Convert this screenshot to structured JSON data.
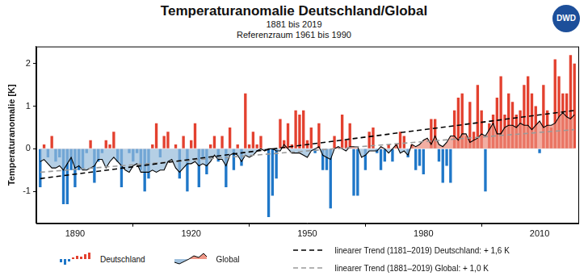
{
  "chart_data": {
    "type": "bar",
    "title": "Temperaturanomalie Deutschland/Global",
    "subtitle": [
      "1881 bis 2019",
      "Referenzraum 1961 bis 1990"
    ],
    "logo": "DWD",
    "y_label": "Temperaturanomalie [K]",
    "x": [
      1881,
      1882,
      1883,
      1884,
      1885,
      1886,
      1887,
      1888,
      1889,
      1890,
      1891,
      1892,
      1893,
      1894,
      1895,
      1896,
      1897,
      1898,
      1899,
      1900,
      1901,
      1902,
      1903,
      1904,
      1905,
      1906,
      1907,
      1908,
      1909,
      1910,
      1911,
      1912,
      1913,
      1914,
      1915,
      1916,
      1917,
      1918,
      1919,
      1920,
      1921,
      1922,
      1923,
      1924,
      1925,
      1926,
      1927,
      1928,
      1929,
      1930,
      1931,
      1932,
      1933,
      1934,
      1935,
      1936,
      1937,
      1938,
      1939,
      1940,
      1941,
      1942,
      1943,
      1944,
      1945,
      1946,
      1947,
      1948,
      1949,
      1950,
      1951,
      1952,
      1953,
      1954,
      1955,
      1956,
      1957,
      1958,
      1959,
      1960,
      1961,
      1962,
      1963,
      1964,
      1965,
      1966,
      1967,
      1968,
      1969,
      1970,
      1971,
      1972,
      1973,
      1974,
      1975,
      1976,
      1977,
      1978,
      1979,
      1980,
      1981,
      1982,
      1983,
      1984,
      1985,
      1986,
      1987,
      1988,
      1989,
      1990,
      1991,
      1992,
      1993,
      1994,
      1995,
      1996,
      1997,
      1998,
      1999,
      2000,
      2001,
      2002,
      2003,
      2004,
      2005,
      2006,
      2007,
      2008,
      2009,
      2010,
      2011,
      2012,
      2013,
      2014,
      2015,
      2016,
      2017,
      2018,
      2019
    ],
    "series": [
      {
        "name": "Deutschland",
        "type": "bar",
        "values": [
          -0.9,
          0.1,
          -0.2,
          0.3,
          -0.3,
          -0.2,
          -1.3,
          -1.3,
          -0.5,
          -0.9,
          -0.5,
          -0.5,
          -0.1,
          0.2,
          -0.8,
          -0.3,
          -0.1,
          0.2,
          0.1,
          0.4,
          -0.3,
          -0.9,
          0.0,
          -0.1,
          -0.3,
          -0.1,
          -0.5,
          -1.0,
          -0.7,
          0.1,
          0.6,
          -0.2,
          0.3,
          0.4,
          0.0,
          0.1,
          -0.7,
          0.3,
          -1.0,
          0.2,
          0.6,
          -0.9,
          -0.2,
          -0.6,
          0.1,
          0.3,
          -0.3,
          0.3,
          -0.9,
          0.5,
          -0.5,
          0.1,
          -0.4,
          1.3,
          0.1,
          0.4,
          0.1,
          0.3,
          0.0,
          -1.6,
          -1.1,
          -0.7,
          0.7,
          0.2,
          0.6,
          0.1,
          0.9,
          0.8,
          0.9,
          0.2,
          0.5,
          -0.1,
          0.6,
          -0.5,
          -0.5,
          -1.4,
          0.3,
          0.0,
          0.8,
          0.2,
          0.6,
          -1.1,
          -1.1,
          0.0,
          -0.5,
          0.4,
          0.5,
          -0.1,
          -0.5,
          -0.3,
          0.1,
          -0.3,
          0.1,
          0.4,
          0.3,
          -0.2,
          0.1,
          -0.5,
          -0.4,
          -0.6,
          0.0,
          0.7,
          0.7,
          -0.3,
          -0.8,
          -0.4,
          -0.8,
          0.9,
          1.2,
          1.3,
          0.3,
          1.1,
          0.4,
          1.5,
          0.9,
          -1.0,
          0.6,
          0.8,
          1.2,
          1.7,
          0.8,
          1.3,
          1.1,
          0.8,
          0.9,
          1.5,
          1.7,
          1.3,
          1.0,
          -0.1,
          1.5,
          0.9,
          0.5,
          2.1,
          1.7,
          1.3,
          1.3,
          2.2,
          2.0
        ],
        "colors": [
          "#1f77c8",
          "#e3412f",
          "#1f77c8",
          "#e3412f",
          "#1f77c8",
          "#1f77c8",
          "#1f77c8",
          "#1f77c8",
          "#1f77c8",
          "#1f77c8",
          "#1f77c8",
          "#1f77c8",
          "#1f77c8",
          "#e3412f",
          "#1f77c8",
          "#1f77c8",
          "#1f77c8",
          "#e3412f",
          "#e3412f",
          "#e3412f",
          "#1f77c8",
          "#1f77c8",
          "#e3412f",
          "#1f77c8",
          "#1f77c8",
          "#1f77c8",
          "#1f77c8",
          "#1f77c8",
          "#1f77c8",
          "#e3412f",
          "#e3412f",
          "#1f77c8",
          "#e3412f",
          "#e3412f",
          "#e3412f",
          "#e3412f",
          "#1f77c8",
          "#e3412f",
          "#1f77c8",
          "#e3412f",
          "#e3412f",
          "#1f77c8",
          "#1f77c8",
          "#1f77c8",
          "#e3412f",
          "#e3412f",
          "#1f77c8",
          "#e3412f",
          "#1f77c8",
          "#e3412f",
          "#1f77c8",
          "#e3412f",
          "#1f77c8",
          "#e3412f",
          "#e3412f",
          "#e3412f",
          "#e3412f",
          "#e3412f",
          "#e3412f",
          "#1f77c8",
          "#1f77c8",
          "#1f77c8",
          "#e3412f",
          "#e3412f",
          "#e3412f",
          "#e3412f",
          "#e3412f",
          "#e3412f",
          "#e3412f",
          "#e3412f",
          "#e3412f",
          "#1f77c8",
          "#e3412f",
          "#1f77c8",
          "#1f77c8",
          "#1f77c8",
          "#e3412f",
          "#e3412f",
          "#e3412f",
          "#e3412f",
          "#e3412f",
          "#1f77c8",
          "#1f77c8",
          "#e3412f",
          "#1f77c8",
          "#e3412f",
          "#e3412f",
          "#1f77c8",
          "#1f77c8",
          "#1f77c8",
          "#e3412f",
          "#1f77c8",
          "#e3412f",
          "#e3412f",
          "#e3412f",
          "#1f77c8",
          "#e3412f",
          "#1f77c8",
          "#1f77c8",
          "#1f77c8",
          "#e3412f",
          "#e3412f",
          "#e3412f",
          "#1f77c8",
          "#1f77c8",
          "#1f77c8",
          "#1f77c8",
          "#e3412f",
          "#e3412f",
          "#e3412f",
          "#e3412f",
          "#e3412f",
          "#e3412f",
          "#e3412f",
          "#e3412f",
          "#1f77c8",
          "#e3412f",
          "#e3412f",
          "#e3412f",
          "#e3412f",
          "#e3412f",
          "#e3412f",
          "#e3412f",
          "#e3412f",
          "#e3412f",
          "#e3412f",
          "#e3412f",
          "#e3412f",
          "#e3412f",
          "#1f77c8",
          "#e3412f",
          "#e3412f",
          "#e3412f",
          "#e3412f",
          "#e3412f",
          "#e3412f",
          "#e3412f",
          "#e3412f",
          "#e3412f"
        ]
      },
      {
        "name": "Global",
        "type": "line",
        "color": "#000000",
        "values": [
          -0.3,
          -0.25,
          -0.35,
          -0.45,
          -0.45,
          -0.4,
          -0.5,
          -0.35,
          -0.2,
          -0.45,
          -0.4,
          -0.5,
          -0.5,
          -0.45,
          -0.4,
          -0.25,
          -0.25,
          -0.45,
          -0.3,
          -0.2,
          -0.3,
          -0.4,
          -0.5,
          -0.55,
          -0.4,
          -0.35,
          -0.55,
          -0.55,
          -0.55,
          -0.5,
          -0.55,
          -0.5,
          -0.5,
          -0.3,
          -0.25,
          -0.45,
          -0.55,
          -0.45,
          -0.35,
          -0.35,
          -0.3,
          -0.4,
          -0.35,
          -0.4,
          -0.3,
          -0.15,
          -0.25,
          -0.25,
          -0.4,
          -0.15,
          -0.1,
          -0.15,
          -0.3,
          -0.15,
          -0.2,
          -0.15,
          -0.05,
          0.0,
          -0.05,
          0.0,
          0.0,
          -0.05,
          -0.05,
          0.1,
          0.0,
          -0.1,
          -0.1,
          -0.1,
          -0.15,
          -0.2,
          -0.05,
          0.0,
          0.05,
          -0.15,
          -0.2,
          -0.25,
          0.0,
          0.05,
          0.0,
          -0.05,
          0.05,
          0.05,
          0.05,
          -0.2,
          -0.15,
          -0.05,
          -0.05,
          -0.05,
          0.05,
          0.0,
          -0.1,
          0.0,
          0.1,
          -0.1,
          -0.05,
          -0.15,
          0.1,
          0.05,
          0.1,
          0.2,
          0.25,
          0.1,
          0.3,
          0.1,
          0.05,
          0.15,
          0.3,
          0.3,
          0.2,
          0.35,
          0.35,
          0.15,
          0.2,
          0.25,
          0.35,
          0.3,
          0.45,
          0.6,
          0.35,
          0.35,
          0.5,
          0.55,
          0.55,
          0.5,
          0.6,
          0.55,
          0.55,
          0.45,
          0.55,
          0.65,
          0.5,
          0.55,
          0.55,
          0.6,
          0.75,
          0.85,
          0.75,
          0.7,
          0.8
        ]
      },
      {
        "name": "linearer Trend (1181–2019) Deutschland: + 1,6 K",
        "type": "line",
        "line_style": "dashed",
        "color": "#000000",
        "x": [
          1881,
          2019
        ],
        "values": [
          -0.7,
          0.9
        ]
      },
      {
        "name": "linearer Trend (1881–2019) Global: + 1,0 K",
        "type": "line",
        "line_style": "dashed",
        "color": "#9a9a9a",
        "x": [
          1881,
          2019
        ],
        "values": [
          -0.55,
          0.45
        ]
      }
    ],
    "xlim": [
      1880,
      2020
    ],
    "xticks": [
      1890,
      1920,
      1950,
      1980,
      2010
    ],
    "ylim": [
      -1.75,
      2.4
    ],
    "yticks": [
      -1,
      0,
      1,
      2
    ],
    "grid": false,
    "legend": "bottom"
  }
}
